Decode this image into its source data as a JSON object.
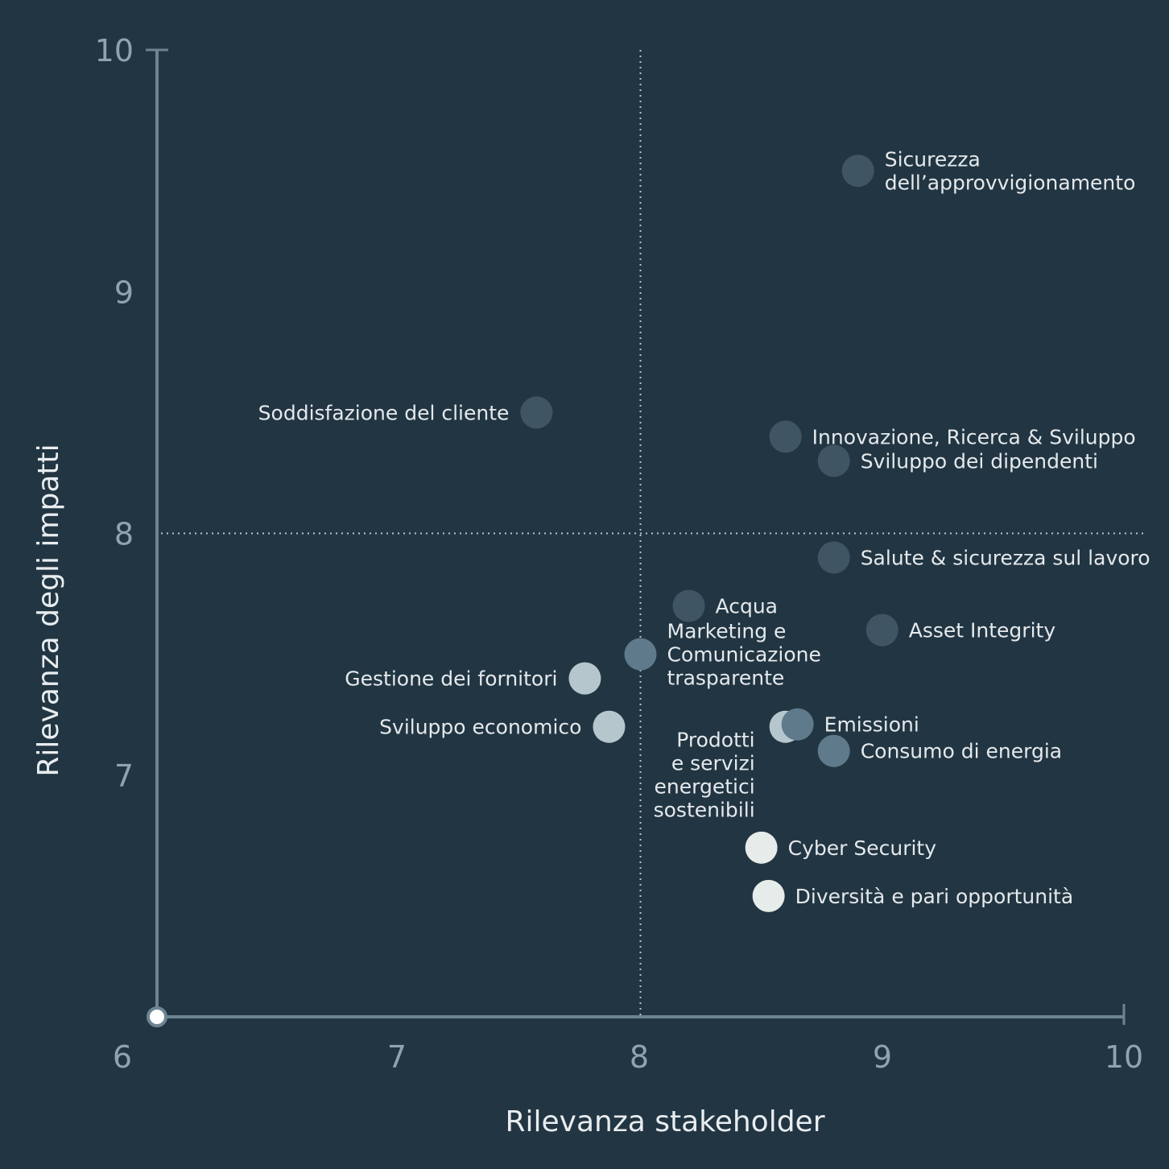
{
  "chart_data": {
    "type": "scatter",
    "xlabel": "Rilevanza stakeholder",
    "ylabel": "Rilevanza degli impatti",
    "xlim": [
      6,
      10
    ],
    "ylim": [
      6,
      10
    ],
    "x_ticks": [
      "6",
      "7",
      "8",
      "9",
      "10"
    ],
    "y_ticks": [
      "7",
      "8",
      "9",
      "10"
    ],
    "reference_lines": {
      "x": 8,
      "y": 8
    },
    "grid": false,
    "legend": "none",
    "colors": {
      "background": "#223542",
      "axis": "#6d8592",
      "reference_line": "#b8c6ce",
      "dark": "#405563",
      "medium": "#5f7a8a",
      "light": "#b5c7cd",
      "white": "#e6ece9"
    },
    "points": [
      {
        "label": [
          "Sicurezza",
          "dell’approvvigionamento"
        ],
        "x": 8.9,
        "y": 9.5,
        "tone": "dark",
        "anchor": "start"
      },
      {
        "label": [
          "Soddisfazione del cliente"
        ],
        "x": 7.57,
        "y": 8.5,
        "tone": "dark",
        "anchor": "end"
      },
      {
        "label": [
          "Innovazione, Ricerca & Sviluppo"
        ],
        "x": 8.6,
        "y": 8.4,
        "tone": "dark",
        "anchor": "start"
      },
      {
        "label": [
          "Sviluppo dei dipendenti"
        ],
        "x": 8.8,
        "y": 8.3,
        "tone": "dark",
        "anchor": "start"
      },
      {
        "label": [
          "Salute & sicurezza sul lavoro"
        ],
        "x": 8.8,
        "y": 7.9,
        "tone": "dark",
        "anchor": "start"
      },
      {
        "label": [
          "Acqua"
        ],
        "x": 8.2,
        "y": 7.7,
        "tone": "dark",
        "anchor": "start"
      },
      {
        "label": [
          "Asset Integrity"
        ],
        "x": 9.0,
        "y": 7.6,
        "tone": "dark",
        "anchor": "start"
      },
      {
        "label": [
          "Marketing e",
          "Comunicazione",
          "trasparente"
        ],
        "x": 8.0,
        "y": 7.5,
        "tone": "medium",
        "anchor": "start"
      },
      {
        "label": [
          "Gestione dei fornitori"
        ],
        "x": 7.77,
        "y": 7.4,
        "tone": "light",
        "anchor": "end"
      },
      {
        "label": [
          "Sviluppo economico"
        ],
        "x": 7.87,
        "y": 7.2,
        "tone": "light",
        "anchor": "end"
      },
      {
        "label": [
          "Prodotti",
          "e servizi",
          "energetici",
          "sostenibili"
        ],
        "x": 8.6,
        "y": 7.2,
        "tone": "light",
        "anchor": "end"
      },
      {
        "label": [
          "Emissioni"
        ],
        "x": 8.65,
        "y": 7.21,
        "tone": "medium",
        "anchor": "start"
      },
      {
        "label": [
          "Consumo di energia"
        ],
        "x": 8.8,
        "y": 7.1,
        "tone": "medium",
        "anchor": "start"
      },
      {
        "label": [
          "Cyber Security"
        ],
        "x": 8.5,
        "y": 6.7,
        "tone": "white",
        "anchor": "start"
      },
      {
        "label": [
          "Diversità e pari opportunità"
        ],
        "x": 8.53,
        "y": 6.5,
        "tone": "white",
        "anchor": "start"
      }
    ]
  }
}
